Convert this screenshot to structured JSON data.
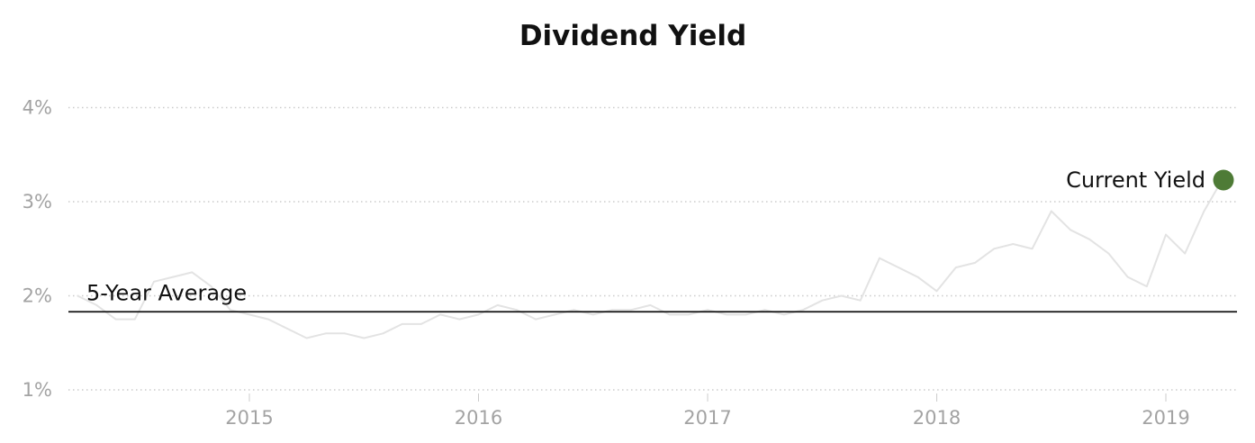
{
  "chart_data": {
    "type": "line",
    "title": "Dividend Yield",
    "xlabel": "",
    "ylabel": "",
    "x_ticks": [
      "2015",
      "2016",
      "2017",
      "2018",
      "2019"
    ],
    "y_ticks": [
      "1%",
      "2%",
      "3%",
      "4%"
    ],
    "ylim": [
      1,
      4
    ],
    "xlim": [
      "2014-04",
      "2019-04"
    ],
    "grid": "horizontal dotted",
    "series": [
      {
        "color": "#e3e3e3",
        "points": [
          [
            "2014-04",
            2.0
          ],
          [
            "2014-05",
            1.9
          ],
          [
            "2014-06",
            1.75
          ],
          [
            "2014-07",
            1.75
          ],
          [
            "2014-08",
            2.15
          ],
          [
            "2014-09",
            2.2
          ],
          [
            "2014-10",
            2.25
          ],
          [
            "2014-11",
            2.1
          ],
          [
            "2014-12",
            1.85
          ],
          [
            "2015-01",
            1.8
          ],
          [
            "2015-02",
            1.75
          ],
          [
            "2015-03",
            1.65
          ],
          [
            "2015-04",
            1.55
          ],
          [
            "2015-05",
            1.6
          ],
          [
            "2015-06",
            1.6
          ],
          [
            "2015-07",
            1.55
          ],
          [
            "2015-08",
            1.6
          ],
          [
            "2015-09",
            1.7
          ],
          [
            "2015-10",
            1.7
          ],
          [
            "2015-11",
            1.8
          ],
          [
            "2015-12",
            1.75
          ],
          [
            "2016-01",
            1.8
          ],
          [
            "2016-02",
            1.9
          ],
          [
            "2016-03",
            1.85
          ],
          [
            "2016-04",
            1.75
          ],
          [
            "2016-05",
            1.8
          ],
          [
            "2016-06",
            1.85
          ],
          [
            "2016-07",
            1.8
          ],
          [
            "2016-08",
            1.85
          ],
          [
            "2016-09",
            1.85
          ],
          [
            "2016-10",
            1.9
          ],
          [
            "2016-11",
            1.8
          ],
          [
            "2016-12",
            1.8
          ],
          [
            "2017-01",
            1.85
          ],
          [
            "2017-02",
            1.8
          ],
          [
            "2017-03",
            1.8
          ],
          [
            "2017-04",
            1.85
          ],
          [
            "2017-05",
            1.8
          ],
          [
            "2017-06",
            1.85
          ],
          [
            "2017-07",
            1.95
          ],
          [
            "2017-08",
            2.0
          ],
          [
            "2017-09",
            1.95
          ],
          [
            "2017-10",
            2.4
          ],
          [
            "2017-11",
            2.3
          ],
          [
            "2017-12",
            2.2
          ],
          [
            "2018-01",
            2.05
          ],
          [
            "2018-02",
            2.3
          ],
          [
            "2018-03",
            2.35
          ],
          [
            "2018-04",
            2.5
          ],
          [
            "2018-05",
            2.55
          ],
          [
            "2018-06",
            2.5
          ],
          [
            "2018-07",
            2.9
          ],
          [
            "2018-08",
            2.7
          ],
          [
            "2018-09",
            2.6
          ],
          [
            "2018-10",
            2.45
          ],
          [
            "2018-11",
            2.2
          ],
          [
            "2018-12",
            2.1
          ],
          [
            "2019-01",
            2.65
          ],
          [
            "2019-02",
            2.45
          ],
          [
            "2019-03",
            2.9
          ],
          [
            "2019-04",
            3.25
          ]
        ]
      }
    ],
    "reference_line": {
      "label": "5-Year Average",
      "value": 1.83,
      "color": "#111111"
    },
    "current_marker": {
      "label": "Current Yield",
      "x": "2019-04",
      "value": 3.25,
      "color": "#4e7b36"
    }
  }
}
